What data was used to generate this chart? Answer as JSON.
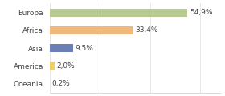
{
  "categories": [
    "Europa",
    "Africa",
    "Asia",
    "America",
    "Oceania"
  ],
  "values": [
    54.9,
    33.4,
    9.5,
    2.0,
    0.2
  ],
  "bar_colors": [
    "#b5c990",
    "#f0b87a",
    "#6b7fb5",
    "#f0d060",
    "#d4c89a"
  ],
  "labels": [
    "54,9%",
    "33,4%",
    "9,5%",
    "2,0%",
    "0,2%"
  ],
  "xlim": [
    0,
    68
  ],
  "background_color": "#ffffff",
  "bar_height": 0.45,
  "label_fontsize": 6.5,
  "tick_fontsize": 6.5,
  "grid_ticks": [
    0,
    20,
    40,
    60
  ]
}
